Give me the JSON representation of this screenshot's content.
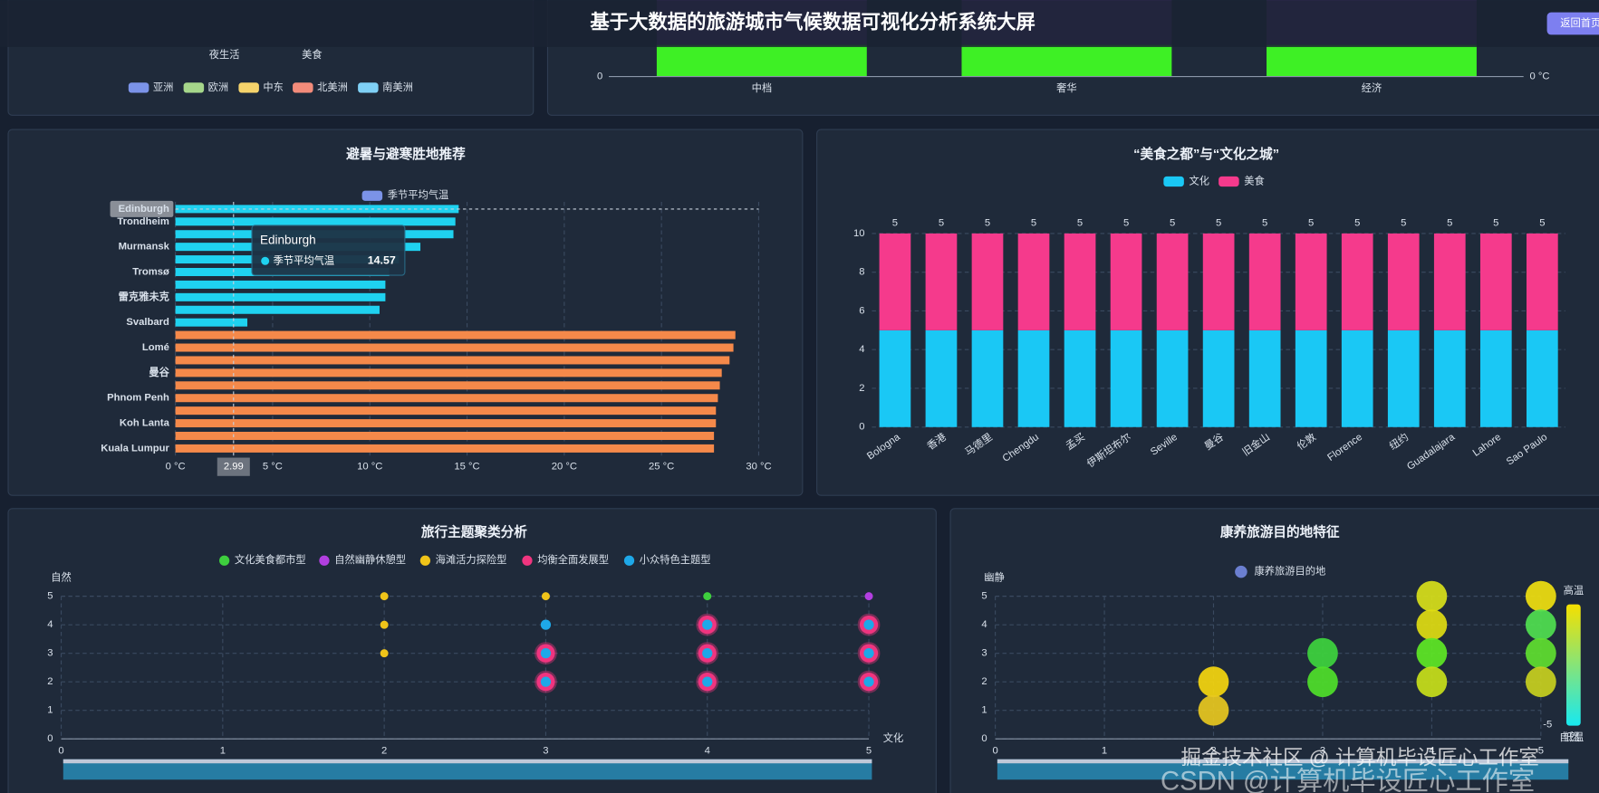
{
  "header": {
    "title": "基于大数据的旅游城市气候数据可视化分析系统大屏",
    "button": "返回首页"
  },
  "watermarks": [
    "掘金技术社区 @ 计算机毕设匠心工作室",
    "CSDN @计算机毕设匠心工作室"
  ],
  "chart_data": [
    {
      "type": "radar",
      "indicators": [
        "夜生活",
        "美食"
      ],
      "series": [
        {
          "name": "亚洲",
          "color": "#7b93e8"
        },
        {
          "name": "欧洲",
          "color": "#a5d68a"
        },
        {
          "name": "中东",
          "color": "#f5d36b"
        },
        {
          "name": "北美洲",
          "color": "#f28b7a"
        },
        {
          "name": "南美洲",
          "color": "#7fd0f5"
        }
      ]
    },
    {
      "type": "bar",
      "categories": [
        "中档",
        "奢华",
        "经济"
      ],
      "yticks": [
        0
      ],
      "y2ticks": [
        {
          "value": 0,
          "label": "0 °C"
        }
      ]
    },
    {
      "type": "hbar",
      "title": "避暑与避寒胜地推荐",
      "categories": [
        "Edinburgh",
        "Trondheim",
        null,
        "Murmansk",
        null,
        "Tromsø",
        null,
        "雷克雅未克",
        null,
        "Svalbard",
        null,
        "Lomé",
        null,
        "曼谷",
        null,
        "Phnom Penh",
        null,
        "Koh Lanta",
        null,
        "Kuala Lumpur"
      ],
      "series": [
        {
          "name": "季节平均气温",
          "color": "#7b93e8",
          "values": [
            14.57,
            14.4,
            14.3,
            12.6,
            11.5,
            11.0,
            10.8,
            10.8,
            10.5,
            3.7,
            28.8,
            28.7,
            28.5,
            28.1,
            28.0,
            27.9,
            27.8,
            27.8,
            27.7,
            27.7
          ],
          "colors": [
            "#1fd2f0",
            "#1fd2f0",
            "#1fd2f0",
            "#1fd2f0",
            "#1fd2f0",
            "#1fd2f0",
            "#1fd2f0",
            "#1fd2f0",
            "#1fd2f0",
            "#1fd2f0",
            "#f5894a",
            "#f5894a",
            "#f5894a",
            "#f5894a",
            "#f5894a",
            "#f5894a",
            "#f5894a",
            "#f5894a",
            "#f5894a",
            "#f5894a"
          ]
        }
      ],
      "xlim": [
        0,
        30
      ],
      "xticks": [
        {
          "value": 0,
          "label": "0 °C"
        },
        {
          "value": 5,
          "label": "5 °C"
        },
        {
          "value": 10,
          "label": "10 °C"
        },
        {
          "value": 15,
          "label": "15 °C"
        },
        {
          "value": 20,
          "label": "20 °C"
        },
        {
          "value": 25,
          "label": "25 °C"
        },
        {
          "value": 30,
          "label": "30 °C"
        }
      ],
      "axis_pointer": 2.99,
      "grid": true
    },
    {
      "type": "stacked-bar",
      "title": "“美食之都”与“文化之城”",
      "categories": [
        "Bologna",
        "香港",
        "马德里",
        "Chengdu",
        "孟买",
        "伊斯坦布尔",
        "Seville",
        "曼谷",
        "旧金山",
        "伦敦",
        "Florence",
        "纽约",
        "Guadalajara",
        "Lahore",
        "Sao Paulo"
      ],
      "series": [
        {
          "name": "文化",
          "color": "#1ac8f5",
          "values": [
            5,
            5,
            5,
            5,
            5,
            5,
            5,
            5,
            5,
            5,
            5,
            5,
            5,
            5,
            5
          ]
        },
        {
          "name": "美食",
          "color": "#f53a8c",
          "values": [
            5,
            5,
            5,
            5,
            5,
            5,
            5,
            5,
            5,
            5,
            5,
            5,
            5,
            5,
            5
          ]
        }
      ],
      "ylim": [
        0,
        10
      ],
      "yticks": [
        0,
        2,
        4,
        6,
        8,
        10
      ],
      "grid": true
    },
    {
      "type": "scatter",
      "title": "旅行主题聚类分析",
      "xlabel": "文化",
      "ylabel": "自然",
      "series": [
        {
          "name": "文化美食都市型",
          "color": "#3ecf3e",
          "x": [
            4
          ],
          "values": [
            5
          ]
        },
        {
          "name": "自然幽静休憩型",
          "color": "#b23fe0",
          "x": [
            5
          ],
          "values": [
            5
          ]
        },
        {
          "name": "海滩活力探险型",
          "color": "#f0c419",
          "x": [
            2,
            2,
            2,
            3
          ],
          "values": [
            5,
            4,
            3,
            5
          ]
        },
        {
          "name": "均衡全面发展型",
          "color": "#f0357f",
          "x": [
            3,
            3,
            4,
            4,
            4,
            5,
            5,
            5
          ],
          "values": [
            3,
            2,
            4,
            3,
            2,
            4,
            3,
            2
          ]
        },
        {
          "name": "小众特色主题型",
          "color": "#1ea8e8",
          "x": [
            3,
            3,
            3,
            4,
            4,
            4,
            5,
            5,
            5
          ],
          "values": [
            4,
            3,
            2,
            4,
            3,
            2,
            4,
            3,
            2
          ]
        }
      ],
      "xlim": [
        0,
        5
      ],
      "ylim": [
        0,
        5
      ],
      "xticks": [
        0,
        1,
        2,
        3,
        4,
        5
      ],
      "yticks": [
        0,
        1,
        2,
        3,
        4,
        5
      ],
      "grid": true
    },
    {
      "type": "bubble",
      "title": "康养旅游目的地特征",
      "xlabel": "自然",
      "ylabel": "幽静",
      "series": [
        {
          "name": "康养旅游目的地",
          "color": "#6b7fd0",
          "x": [
            2,
            2,
            3,
            3,
            4,
            4,
            4,
            4,
            5,
            5,
            5,
            5
          ],
          "values": [
            2,
            1,
            3,
            2,
            5,
            4,
            3,
            2,
            5,
            4,
            3,
            2
          ],
          "point_colors": [
            "#f5d60f",
            "#e8c820",
            "#3ed43e",
            "#4fe02a",
            "#d8e01a",
            "#e0dc12",
            "#5ee825",
            "#c8e01a",
            "#f0e010",
            "#50e050",
            "#60e030",
            "#c8d020"
          ]
        }
      ],
      "xlim": [
        0,
        5
      ],
      "ylim": [
        0,
        5
      ],
      "xticks": [
        0,
        1,
        2,
        3,
        4,
        5
      ],
      "yticks": [
        0,
        1,
        2,
        3,
        4,
        5
      ],
      "grid": true,
      "visual_map": {
        "min": -5,
        "high_text": "高温",
        "low_text": "低温",
        "colors": [
          "#f5e000",
          "#18e8f0"
        ]
      }
    }
  ]
}
